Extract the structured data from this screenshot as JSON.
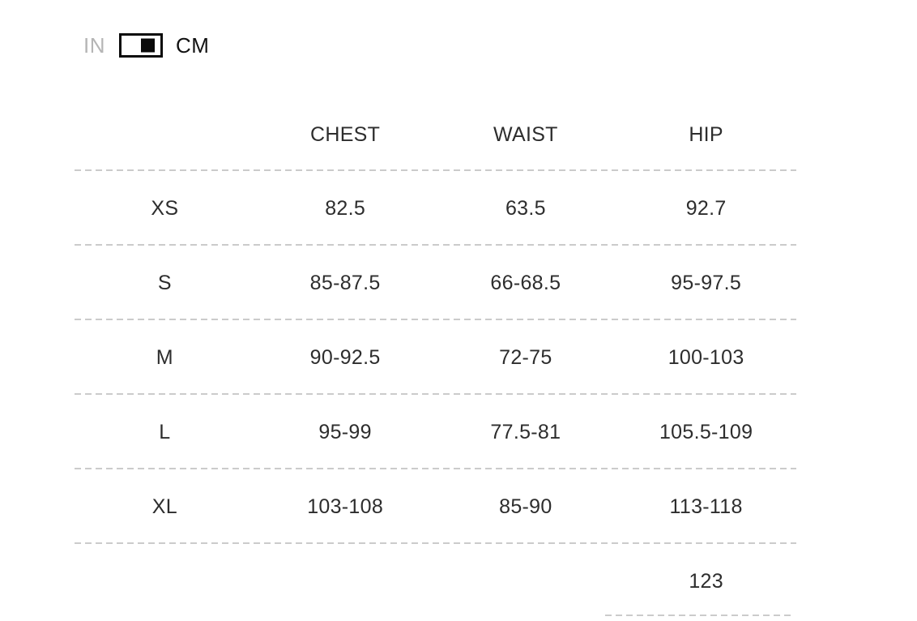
{
  "unit_toggle": {
    "in_label": "IN",
    "cm_label": "CM",
    "selected": "CM"
  },
  "table": {
    "header": {
      "size": "",
      "chest": "CHEST",
      "waist": "WAIST",
      "hip": "HIP"
    },
    "rows": [
      {
        "size": "XS",
        "chest": "82.5",
        "waist": "63.5",
        "hip": "92.7"
      },
      {
        "size": "S",
        "chest": "85-87.5",
        "waist": "66-68.5",
        "hip": "95-97.5"
      },
      {
        "size": "M",
        "chest": "90-92.5",
        "waist": "72-75",
        "hip": "100-103"
      },
      {
        "size": "L",
        "chest": "95-99",
        "waist": "77.5-81",
        "hip": "105.5-109"
      },
      {
        "size": "XL",
        "chest": "103-108",
        "waist": "85-90",
        "hip": "113-118"
      },
      {
        "size": "",
        "chest": "",
        "waist": "",
        "hip": "123"
      }
    ]
  },
  "colors": {
    "text": "#2d2d2d",
    "inactive_label": "#b5b5b5",
    "active_label": "#111111",
    "toggle_border": "#0a0a0a",
    "dashed_divider": "#cbcbcb",
    "background": "#ffffff"
  }
}
